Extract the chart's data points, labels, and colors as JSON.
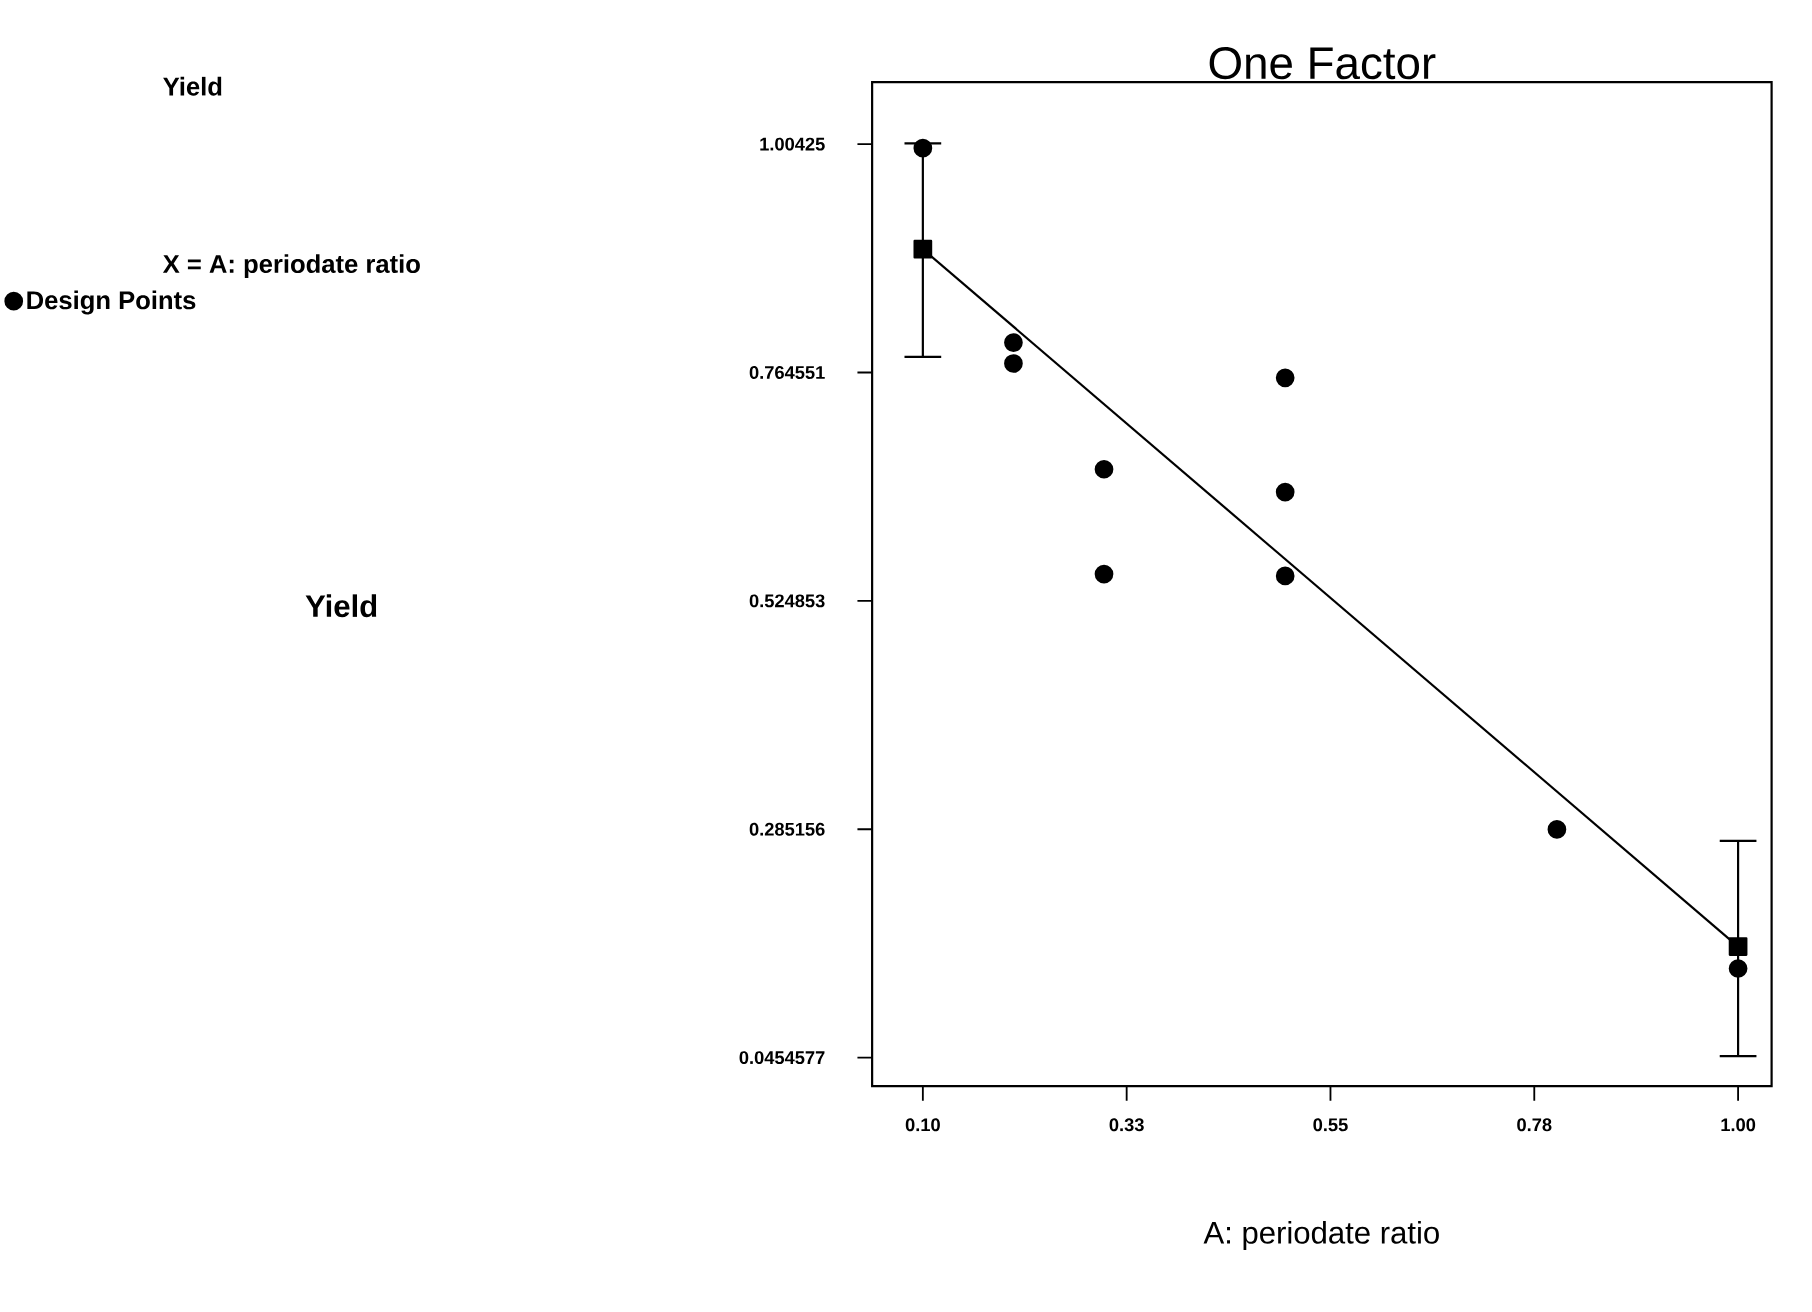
{
  "chart_data": {
    "type": "scatter",
    "title": "One Factor",
    "xlabel": "A: periodate ratio",
    "annotations": [
      "Yield",
      "X = A: periodate ratio",
      "Yield"
    ],
    "xlim": [
      0.044,
      1.037
    ],
    "ylim": [
      0.0155,
      1.0694
    ],
    "xticks": [
      {
        "value": 0.1,
        "label": "0.10"
      },
      {
        "value": 0.325,
        "label": "0.33"
      },
      {
        "value": 0.55,
        "label": "0.55"
      },
      {
        "value": 0.775,
        "label": "0.78"
      },
      {
        "value": 1.0,
        "label": "1.00"
      }
    ],
    "yticks": [
      {
        "value": 0.0454577,
        "label": "0.0454577"
      },
      {
        "value": 0.285156,
        "label": "0.285156"
      },
      {
        "value": 0.524853,
        "label": "0.524853"
      },
      {
        "value": 0.764551,
        "label": "0.764551"
      },
      {
        "value": 1.00425,
        "label": "1.00425"
      }
    ],
    "legend": "top left",
    "grid": false,
    "series": [
      {
        "name": "Design Points",
        "marker": "circle",
        "color": "#000000",
        "x": [
          0.1,
          0.2,
          0.2,
          0.3,
          0.3,
          0.5,
          0.5,
          0.5,
          0.8,
          1.0
        ],
        "values": [
          1.0,
          0.796,
          0.774,
          0.663,
          0.553,
          0.759,
          0.639,
          0.551,
          0.285,
          0.139
        ]
      },
      {
        "type": "line",
        "marker": "square",
        "line_style": "solid",
        "color": "#000000",
        "x": [
          0.1,
          1.0
        ],
        "values": [
          0.894,
          0.162
        ],
        "errors": [
          [
            0.781,
            1.005
          ],
          [
            0.047,
            0.273
          ]
        ]
      }
    ]
  }
}
